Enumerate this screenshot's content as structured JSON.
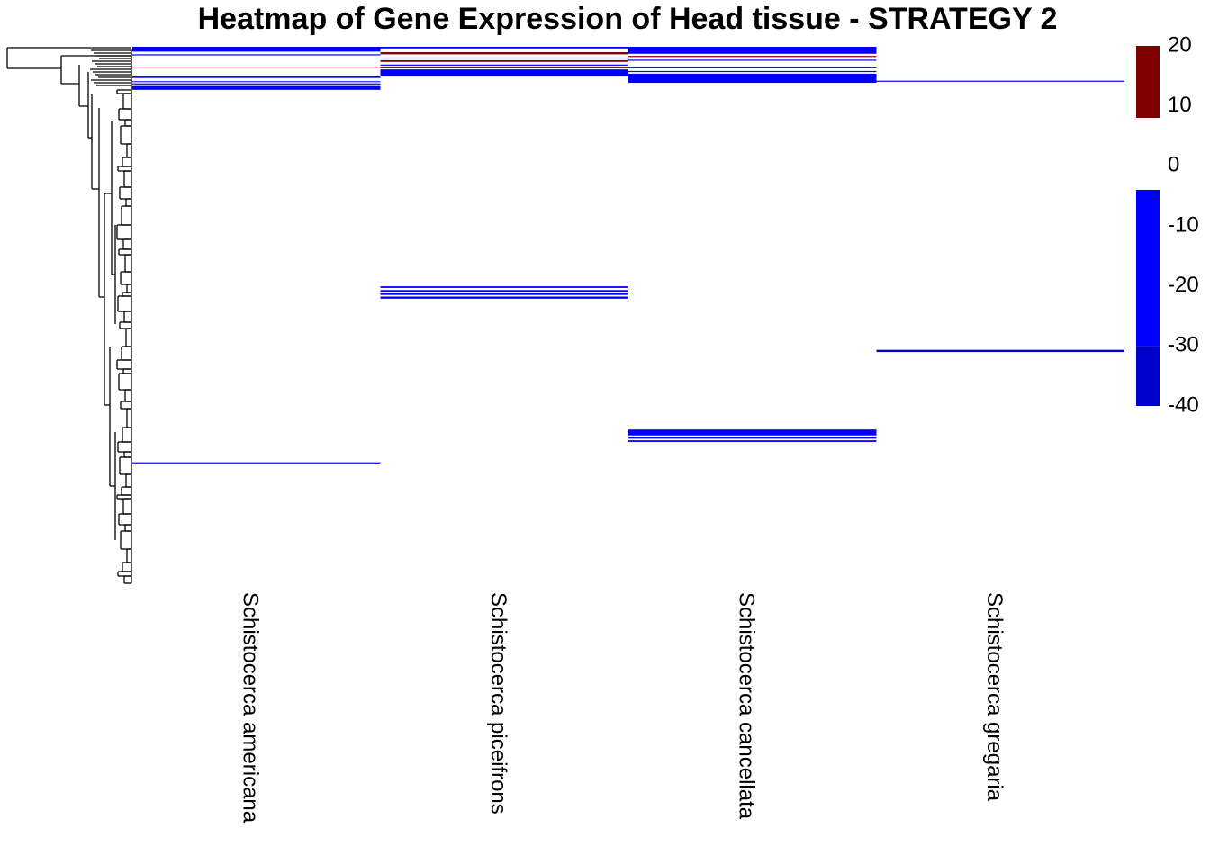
{
  "chart_data": {
    "type": "heatmap",
    "title": "Heatmap of Gene Expression of Head tissue - STRATEGY 2",
    "columns": [
      "Schistocerca americana",
      "Schistocerca piceifrons",
      "Schistocerca cancellata",
      "Schistocerca gregaria"
    ],
    "n_rows": 1000,
    "row_order": "dendrogram-clustered",
    "row_dendrogram": true,
    "grid": false,
    "colors": {
      "positive": "#800000",
      "negative": "#0000ff",
      "strong_negative": "#0000cc",
      "zero": "#ffffff"
    },
    "legend": {
      "placement": "right",
      "ticks": [
        "20",
        "10",
        "0",
        "-10",
        "-20",
        "-30",
        "-40"
      ],
      "blocks": [
        {
          "from": 8,
          "to": 20,
          "color": "#800000"
        },
        {
          "from": -4,
          "to": -30,
          "color": "#0000ff"
        },
        {
          "from": -30,
          "to": -40,
          "color": "#0000cc"
        }
      ],
      "range": [
        -40,
        20
      ]
    },
    "cells": [
      {
        "col": 0,
        "row_start": 0,
        "row_end": 9,
        "value": -20
      },
      {
        "col": 0,
        "row_start": 14,
        "row_end": 16,
        "value": -20
      },
      {
        "col": 0,
        "row_start": 37,
        "row_end": 38,
        "value": 15
      },
      {
        "col": 0,
        "row_start": 55,
        "row_end": 58,
        "value": -20
      },
      {
        "col": 0,
        "row_start": 64,
        "row_end": 65,
        "value": -20
      },
      {
        "col": 0,
        "row_start": 68,
        "row_end": 70,
        "value": -20
      },
      {
        "col": 0,
        "row_start": 73,
        "row_end": 80,
        "value": -25
      },
      {
        "col": 0,
        "row_start": 772,
        "row_end": 774,
        "value": -20
      },
      {
        "col": 1,
        "row_start": 0,
        "row_end": 3,
        "value": -20
      },
      {
        "col": 1,
        "row_start": 10,
        "row_end": 14,
        "value": 15
      },
      {
        "col": 1,
        "row_start": 20,
        "row_end": 21,
        "value": -20
      },
      {
        "col": 1,
        "row_start": 25,
        "row_end": 28,
        "value": 15
      },
      {
        "col": 1,
        "row_start": 33,
        "row_end": 35,
        "value": -20
      },
      {
        "col": 1,
        "row_start": 38,
        "row_end": 40,
        "value": 15
      },
      {
        "col": 1,
        "row_start": 42,
        "row_end": 55,
        "value": -25
      },
      {
        "col": 1,
        "row_start": 445,
        "row_end": 448,
        "value": -20
      },
      {
        "col": 1,
        "row_start": 452,
        "row_end": 455,
        "value": -20
      },
      {
        "col": 1,
        "row_start": 458,
        "row_end": 461,
        "value": -20
      },
      {
        "col": 1,
        "row_start": 464,
        "row_end": 468,
        "value": -20
      },
      {
        "col": 2,
        "row_start": 0,
        "row_end": 13,
        "value": -25
      },
      {
        "col": 2,
        "row_start": 17,
        "row_end": 19,
        "value": 15
      },
      {
        "col": 2,
        "row_start": 24,
        "row_end": 26,
        "value": -20
      },
      {
        "col": 2,
        "row_start": 38,
        "row_end": 40,
        "value": -20
      },
      {
        "col": 2,
        "row_start": 45,
        "row_end": 47,
        "value": -20
      },
      {
        "col": 2,
        "row_start": 50,
        "row_end": 67,
        "value": -25
      },
      {
        "col": 2,
        "row_start": 711,
        "row_end": 722,
        "value": -25
      },
      {
        "col": 2,
        "row_start": 725,
        "row_end": 728,
        "value": -20
      },
      {
        "col": 2,
        "row_start": 731,
        "row_end": 734,
        "value": -20
      },
      {
        "col": 3,
        "row_start": 63,
        "row_end": 65,
        "value": -20
      },
      {
        "col": 3,
        "row_start": 563,
        "row_end": 567,
        "value": -30
      }
    ]
  }
}
